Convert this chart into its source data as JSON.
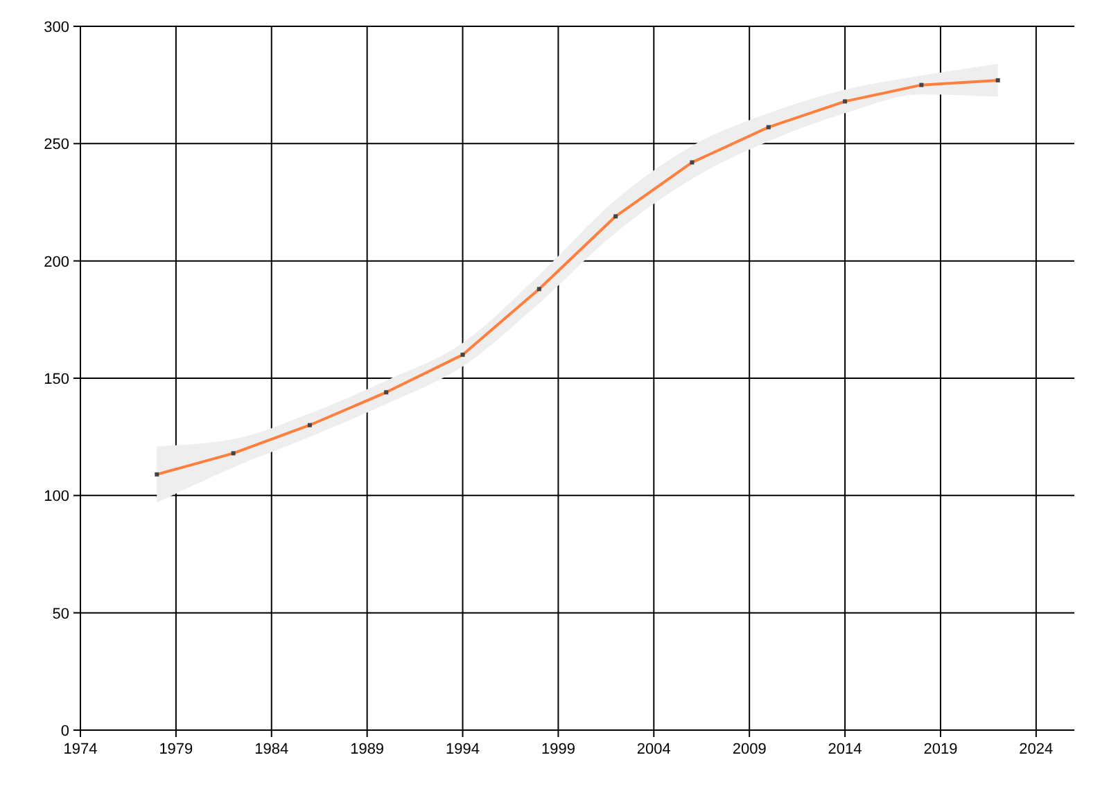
{
  "chart_data": {
    "type": "line",
    "x": [
      1978,
      1982,
      1986,
      1990,
      1994,
      1998,
      2002,
      2006,
      2010,
      2014,
      2018,
      2022
    ],
    "series": [
      {
        "color": "#ff7f3f",
        "values": [
          109,
          118,
          130,
          144,
          160,
          188,
          219,
          242,
          257,
          268,
          275,
          277
        ],
        "lower": [
          97,
          112,
          125,
          139,
          155,
          182,
          212,
          235,
          251,
          263,
          271,
          270
        ],
        "upper": [
          121,
          124,
          135,
          149,
          165,
          194,
          226,
          249,
          263,
          273,
          279,
          284
        ]
      }
    ],
    "xlim": [
      1974,
      2026
    ],
    "xticks": [
      1974,
      1979,
      1984,
      1989,
      1994,
      1999,
      2004,
      2009,
      2014,
      2019,
      2024
    ],
    "ylim": [
      0,
      300
    ],
    "yticks": [
      0,
      50,
      100,
      150,
      200,
      250,
      300
    ],
    "grid": true,
    "marker": "square",
    "line_style": "solid"
  }
}
